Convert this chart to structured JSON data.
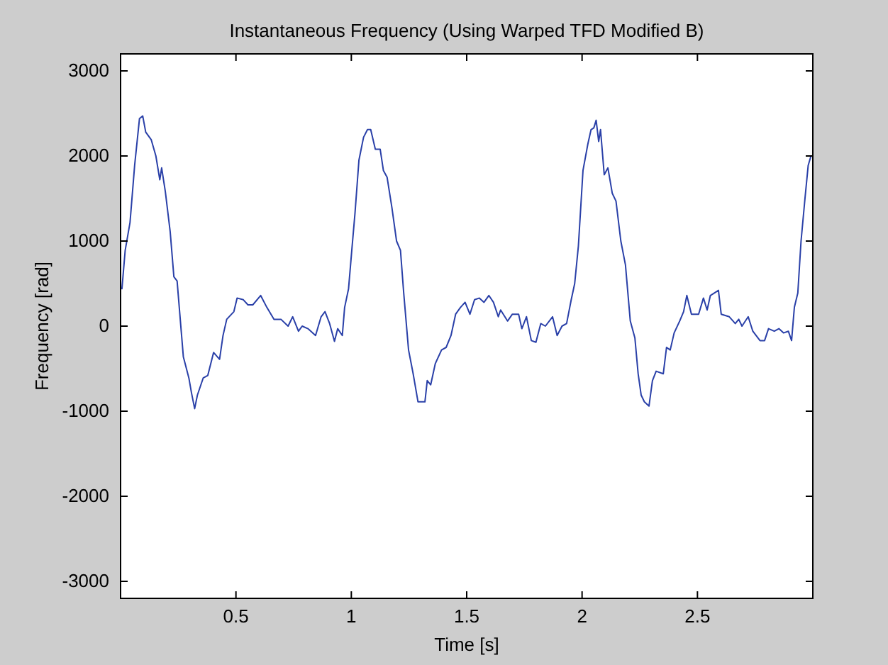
{
  "chart_data": {
    "type": "line",
    "title": "Instantaneous Frequency (Using Warped TFD Modified B)",
    "xlabel": "Time [s]",
    "ylabel": "Frequency [rad]",
    "xlim": [
      0,
      3
    ],
    "ylim": [
      -3200,
      3200
    ],
    "xticks": [
      0.5,
      1,
      1.5,
      2,
      2.5
    ],
    "yticks": [
      -3000,
      -2000,
      -1000,
      0,
      1000,
      2000,
      3000
    ],
    "grid": false,
    "marker": "none",
    "line_style": "solid",
    "series": [
      {
        "color": "#2a40a8",
        "x": [
          0.006,
          0.02,
          0.041,
          0.061,
          0.082,
          0.096,
          0.109,
          0.133,
          0.153,
          0.17,
          0.178,
          0.194,
          0.215,
          0.231,
          0.245,
          0.272,
          0.296,
          0.307,
          0.321,
          0.333,
          0.358,
          0.378,
          0.403,
          0.429,
          0.444,
          0.46,
          0.491,
          0.505,
          0.532,
          0.552,
          0.573,
          0.607,
          0.634,
          0.665,
          0.695,
          0.726,
          0.746,
          0.771,
          0.787,
          0.812,
          0.845,
          0.869,
          0.886,
          0.906,
          0.927,
          0.941,
          0.961,
          0.971,
          0.988,
          1.002,
          1.016,
          1.033,
          1.053,
          1.07,
          1.084,
          1.104,
          1.125,
          1.139,
          1.155,
          1.176,
          1.196,
          1.213,
          1.227,
          1.248,
          1.268,
          1.289,
          1.319,
          1.329,
          1.344,
          1.364,
          1.391,
          1.411,
          1.432,
          1.452,
          1.473,
          1.493,
          1.514,
          1.534,
          1.555,
          1.575,
          1.596,
          1.616,
          1.637,
          1.647,
          1.677,
          1.698,
          1.725,
          1.739,
          1.759,
          1.78,
          1.8,
          1.821,
          1.841,
          1.872,
          1.892,
          1.913,
          1.933,
          1.953,
          1.968,
          1.984,
          2.004,
          2.025,
          2.039,
          2.051,
          2.061,
          2.072,
          2.08,
          2.096,
          2.112,
          2.131,
          2.147,
          2.168,
          2.188,
          2.209,
          2.229,
          2.243,
          2.256,
          2.27,
          2.29,
          2.305,
          2.321,
          2.352,
          2.366,
          2.382,
          2.399,
          2.423,
          2.44,
          2.454,
          2.474,
          2.505,
          2.526,
          2.542,
          2.556,
          2.591,
          2.603,
          2.638,
          2.664,
          2.679,
          2.693,
          2.72,
          2.74,
          2.771,
          2.791,
          2.808,
          2.833,
          2.853,
          2.873,
          2.894,
          2.908,
          2.92,
          2.935,
          2.949,
          2.966,
          2.98,
          2.992
        ],
        "values": [
          440,
          890,
          1220,
          1890,
          2440,
          2470,
          2280,
          2190,
          2000,
          1720,
          1860,
          1580,
          1110,
          580,
          530,
          -360,
          -610,
          -780,
          -970,
          -810,
          -610,
          -580,
          -310,
          -390,
          -110,
          80,
          170,
          330,
          310,
          250,
          250,
          360,
          220,
          80,
          80,
          0,
          110,
          -60,
          0,
          -30,
          -110,
          110,
          170,
          30,
          -180,
          -30,
          -110,
          220,
          440,
          890,
          1330,
          1950,
          2220,
          2310,
          2310,
          2080,
          2080,
          1830,
          1750,
          1390,
          1000,
          890,
          390,
          -280,
          -560,
          -890,
          -890,
          -640,
          -690,
          -440,
          -280,
          -250,
          -110,
          140,
          220,
          280,
          140,
          310,
          330,
          280,
          360,
          280,
          110,
          190,
          60,
          140,
          140,
          -30,
          110,
          -170,
          -190,
          30,
          0,
          110,
          -110,
          0,
          30,
          310,
          500,
          940,
          1830,
          2140,
          2310,
          2330,
          2420,
          2170,
          2310,
          1780,
          1860,
          1560,
          1470,
          1000,
          720,
          60,
          -140,
          -560,
          -810,
          -890,
          -940,
          -640,
          -530,
          -560,
          -250,
          -280,
          -80,
          60,
          170,
          360,
          140,
          140,
          330,
          190,
          360,
          420,
          140,
          110,
          30,
          80,
          0,
          110,
          -60,
          -170,
          -170,
          -30,
          -60,
          -30,
          -80,
          -60,
          -170,
          220,
          390,
          1000,
          1500,
          1890,
          2000
        ]
      }
    ]
  }
}
